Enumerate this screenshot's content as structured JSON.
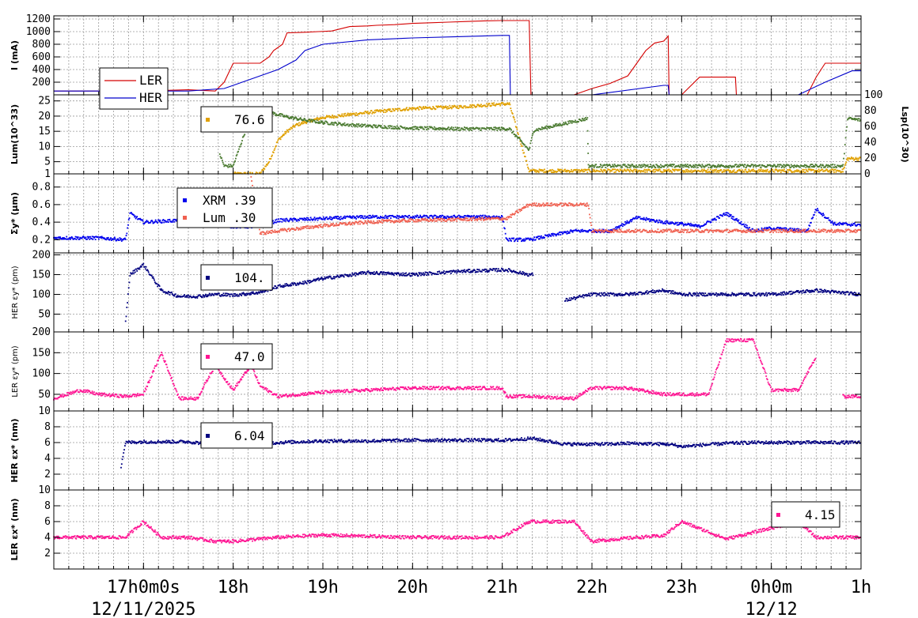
{
  "chart_data": [
    {
      "type": "line",
      "panel": "I",
      "ylabel": "I (mA)",
      "ylim": [
        0,
        1250
      ],
      "yticks": [
        200,
        400,
        600,
        800,
        1000,
        1200
      ],
      "legend": {
        "placement": "lower-left",
        "entries": [
          {
            "name": "LER",
            "color": "#d40000"
          },
          {
            "name": "HER",
            "color": "#0000cc"
          }
        ]
      },
      "series": [
        {
          "name": "LER",
          "color": "#d40000",
          "x": [
            16.0,
            17.0,
            17.5,
            17.8,
            17.9,
            18.0,
            18.3,
            18.4,
            18.45,
            18.55,
            18.6,
            18.8,
            18.95,
            19.1,
            19.3,
            19.5,
            19.6,
            19.8,
            20.0,
            20.2,
            20.4,
            20.6,
            20.8,
            21.0,
            21.05,
            21.3,
            21.32,
            21.8,
            22.0,
            22.2,
            22.4,
            22.6,
            22.7,
            22.8,
            22.85,
            22.86,
            23.0,
            23.2,
            23.25,
            23.6,
            23.61,
            23.9,
            24.0,
            24.4,
            24.5,
            24.6,
            25.0
          ],
          "y": [
            60,
            60,
            80,
            60,
            200,
            500,
            500,
            600,
            700,
            800,
            980,
            990,
            1000,
            1010,
            1080,
            1090,
            1100,
            1110,
            1130,
            1140,
            1150,
            1160,
            1170,
            1175,
            1175,
            1175,
            0,
            0,
            100,
            180,
            300,
            700,
            820,
            850,
            930,
            0,
            0,
            280,
            280,
            280,
            0,
            0,
            0,
            0,
            280,
            500,
            500
          ]
        },
        {
          "name": "HER",
          "color": "#0000cc",
          "x": [
            16.0,
            17.0,
            17.5,
            17.9,
            18.0,
            18.3,
            18.5,
            18.7,
            18.8,
            19.0,
            19.5,
            20.0,
            20.5,
            21.0,
            21.08,
            21.09,
            22.0,
            22.8,
            22.85,
            22.86,
            24.3,
            24.6,
            24.9,
            25.0
          ],
          "y": [
            60,
            60,
            60,
            100,
            150,
            300,
            400,
            550,
            700,
            800,
            870,
            900,
            920,
            940,
            940,
            0,
            0,
            150,
            150,
            0,
            0,
            200,
            380,
            380
          ]
        }
      ]
    },
    {
      "type": "scatter",
      "panel": "Lum",
      "ylabel": "Lum(10^33)",
      "ylim": [
        1,
        27
      ],
      "yticks": [
        1,
        5,
        10,
        15,
        20,
        25
      ],
      "y2label": "Lsp(10^30)",
      "y2lim": [
        0,
        100
      ],
      "y2ticks": [
        0,
        20,
        40,
        60,
        80,
        100
      ],
      "legend_value": "76.6",
      "legend_color": "#e0a000",
      "series": [
        {
          "name": "Lum",
          "color": "#e0a000",
          "x": [
            18.0,
            18.3,
            18.4,
            18.5,
            18.6,
            18.7,
            18.8,
            19.0,
            19.3,
            19.6,
            20.0,
            20.5,
            21.0,
            21.08,
            21.3,
            24.8,
            24.85,
            25.0
          ],
          "y": [
            1,
            1,
            5,
            12,
            15,
            17,
            18,
            19.5,
            20.5,
            21.5,
            22.5,
            23,
            24,
            24,
            2,
            2,
            6,
            6
          ]
        },
        {
          "name": "Lsp",
          "color": "#4a7a30",
          "x": [
            17.85,
            17.9,
            18.0,
            18.2,
            18.3,
            18.4,
            18.6,
            18.8,
            19.0,
            19.3,
            19.6,
            20.0,
            20.5,
            21.0,
            21.08,
            21.3,
            21.35,
            21.95,
            21.96,
            24.8,
            24.85,
            25.0
          ],
          "y": [
            25,
            10,
            10,
            75,
            80,
            78,
            72,
            68,
            65,
            62,
            60,
            58,
            57,
            57,
            57,
            30,
            55,
            70,
            10,
            10,
            70,
            68
          ]
        }
      ]
    },
    {
      "type": "scatter",
      "panel": "Sigma",
      "ylabel": "Σy* (μm)",
      "ylim": [
        0.05,
        0.95
      ],
      "yticks": [
        0.2,
        0.4,
        0.6,
        0.8
      ],
      "legend": {
        "placement": "top-left",
        "entries": [
          {
            "name": "XRM",
            "value": ".39",
            "color": "#0000ee"
          },
          {
            "name": "Lum",
            "value": ".30",
            "color": "#f06050"
          }
        ]
      },
      "series": [
        {
          "name": "XRM",
          "color": "#0000ee",
          "x": [
            16.0,
            16.5,
            16.8,
            16.85,
            17.0,
            17.4,
            17.8,
            18.0,
            18.3,
            18.5,
            19.0,
            19.5,
            20.0,
            20.5,
            21.0,
            21.05,
            21.3,
            21.8,
            22.0,
            22.2,
            22.5,
            22.8,
            23.0,
            23.2,
            23.5,
            23.8,
            24.0,
            24.4,
            24.5,
            24.7,
            25.0
          ],
          "y": [
            0.22,
            0.22,
            0.2,
            0.5,
            0.4,
            0.42,
            0.38,
            0.35,
            0.35,
            0.42,
            0.44,
            0.46,
            0.46,
            0.46,
            0.46,
            0.2,
            0.2,
            0.3,
            0.3,
            0.3,
            0.45,
            0.4,
            0.38,
            0.35,
            0.5,
            0.3,
            0.33,
            0.3,
            0.55,
            0.38,
            0.37
          ]
        },
        {
          "name": "Lum",
          "color": "#f06050",
          "x": [
            18.2,
            18.3,
            18.5,
            19.0,
            19.5,
            20.0,
            20.5,
            21.0,
            21.05,
            21.3,
            21.35,
            21.96,
            22.0,
            24.7,
            24.8,
            25.0
          ],
          "y": [
            0.9,
            0.27,
            0.3,
            0.36,
            0.4,
            0.42,
            0.43,
            0.44,
            0.44,
            0.6,
            0.6,
            0.6,
            0.3,
            0.3,
            0.3,
            0.3
          ]
        }
      ]
    },
    {
      "type": "scatter",
      "panel": "HER_ey",
      "ylabel": "HER εy* (pm)",
      "ylim": [
        5,
        205
      ],
      "yticks": [
        50,
        100,
        150,
        200
      ],
      "legend_value": "104.",
      "legend_color": "#000080",
      "series": [
        {
          "name": "HER",
          "color": "#000080",
          "x": [
            16.8,
            16.85,
            17.0,
            17.2,
            17.4,
            17.6,
            17.8,
            18.0,
            18.3,
            18.5,
            18.8,
            19.0,
            19.5,
            20.0,
            20.5,
            21.0,
            21.05,
            21.3,
            21.35,
            21.7,
            22.0,
            22.4,
            22.8,
            23.0,
            23.2,
            23.5,
            23.8,
            24.0,
            24.5,
            25.0
          ],
          "y": [
            30,
            150,
            175,
            110,
            95,
            95,
            100,
            98,
            105,
            120,
            130,
            140,
            155,
            150,
            158,
            162,
            162,
            150,
            150,
            85,
            100,
            100,
            110,
            100,
            100,
            100,
            100,
            100,
            110,
            100
          ]
        }
      ]
    },
    {
      "type": "scatter",
      "panel": "LER_ey",
      "ylabel": "LER εy* (pm)",
      "ylim": [
        10,
        200
      ],
      "yticks": [
        10,
        50,
        100,
        150,
        200
      ],
      "legend_value": "47.0",
      "legend_color": "#ff1493",
      "series": [
        {
          "name": "LER",
          "color": "#ff1493",
          "x": [
            16.0,
            16.3,
            16.5,
            16.8,
            17.0,
            17.2,
            17.4,
            17.6,
            17.8,
            18.0,
            18.2,
            18.3,
            18.5,
            19.0,
            19.5,
            20.0,
            20.5,
            21.0,
            21.05,
            21.3,
            21.8,
            22.0,
            22.4,
            22.8,
            23.0,
            23.3,
            23.5,
            23.8,
            24.0,
            24.3,
            24.5,
            24.8,
            25.0
          ],
          "y": [
            40,
            60,
            50,
            45,
            50,
            150,
            40,
            40,
            120,
            60,
            120,
            70,
            45,
            55,
            60,
            65,
            65,
            65,
            45,
            45,
            40,
            65,
            65,
            50,
            50,
            50,
            180,
            180,
            60,
            60,
            140,
            45,
            45
          ]
        }
      ]
    },
    {
      "type": "scatter",
      "panel": "HER_ex",
      "ylabel": "HER εx* (nm)",
      "ylim": [
        0,
        10
      ],
      "yticks": [
        2,
        4,
        6,
        8
      ],
      "legend_value": "6.04",
      "legend_color": "#000080",
      "series": [
        {
          "name": "HER",
          "color": "#000080",
          "x": [
            16.75,
            16.8,
            17.0,
            17.5,
            18.0,
            18.5,
            19.0,
            19.5,
            20.0,
            20.5,
            21.0,
            21.05,
            21.3,
            21.35,
            21.7,
            22.0,
            22.2,
            22.4,
            22.8,
            22.85,
            23.0,
            23.5,
            23.8,
            24.0,
            24.5,
            25.0
          ],
          "y": [
            3,
            6,
            6.1,
            6.1,
            5.5,
            6,
            6.2,
            6.2,
            6.3,
            6.3,
            6.3,
            6.3,
            6.5,
            6.5,
            5.8,
            5.8,
            5.8,
            5.9,
            5.8,
            5.8,
            5.5,
            5.9,
            6,
            6,
            6,
            6
          ]
        }
      ]
    },
    {
      "type": "scatter",
      "panel": "LER_ex",
      "ylabel": "LER εx* (nm)",
      "ylim": [
        0,
        10
      ],
      "yticks": [
        2,
        4,
        6,
        8,
        10
      ],
      "legend_value": "4.15",
      "legend_color": "#ff1493",
      "series": [
        {
          "name": "LER",
          "color": "#ff1493",
          "x": [
            16.0,
            16.5,
            16.8,
            17.0,
            17.2,
            17.5,
            17.8,
            18.0,
            18.5,
            19.0,
            20.0,
            21.0,
            21.3,
            21.8,
            22.0,
            22.5,
            22.8,
            23.0,
            23.5,
            24.3,
            24.5,
            25.0
          ],
          "y": [
            4,
            4,
            4,
            6,
            4,
            4,
            3.5,
            3.5,
            4,
            4.3,
            4,
            4,
            6,
            6,
            3.5,
            4,
            4.2,
            6,
            3.8,
            6,
            4,
            4
          ]
        }
      ]
    }
  ],
  "x_axis": {
    "xlim": [
      16.0,
      25.0
    ],
    "ticks": [
      {
        "value": 17.0,
        "label": "17h0m0s"
      },
      {
        "value": 18.0,
        "label": "18h"
      },
      {
        "value": 19.0,
        "label": "19h"
      },
      {
        "value": 20.0,
        "label": "20h"
      },
      {
        "value": 21.0,
        "label": "21h"
      },
      {
        "value": 22.0,
        "label": "22h"
      },
      {
        "value": 23.0,
        "label": "23h"
      },
      {
        "value": 24.0,
        "label": "0h0m"
      },
      {
        "value": 25.0,
        "label": "1h"
      }
    ],
    "dates": [
      {
        "value": 17.0,
        "label": "12/11/2025"
      },
      {
        "value": 24.0,
        "label": "12/12"
      }
    ]
  }
}
